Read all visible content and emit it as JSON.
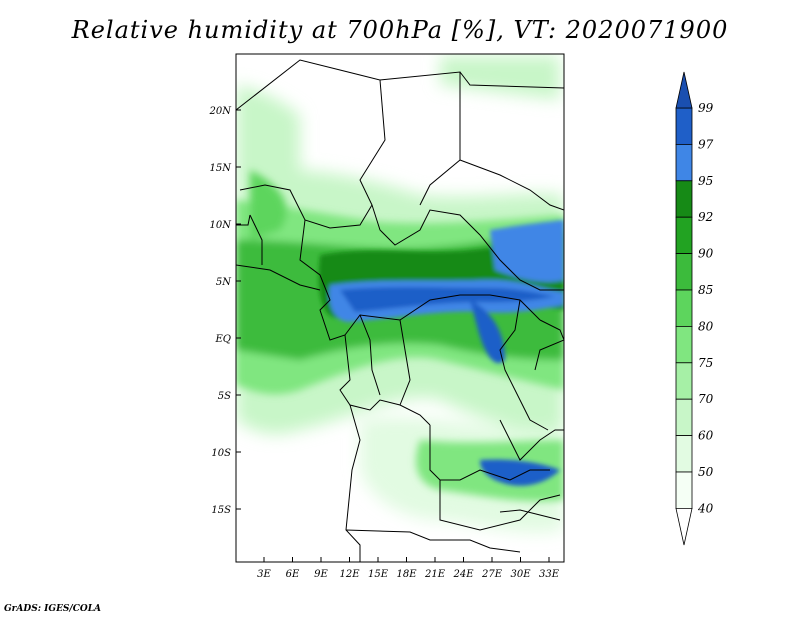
{
  "title": "Relative humidity at 700hPa [%], VT: 2020071900",
  "credit": "GrADS: IGES/COLA",
  "map": {
    "lat_labels": [
      "20N",
      "15N",
      "10N",
      "5N",
      "EQ",
      "5S",
      "10S",
      "15S"
    ],
    "lon_labels": [
      "3E",
      "6E",
      "9E",
      "12E",
      "15E",
      "18E",
      "21E",
      "24E",
      "27E",
      "30E",
      "33E"
    ]
  },
  "colorbar": {
    "levels": [
      "99",
      "97",
      "95",
      "92",
      "90",
      "85",
      "80",
      "75",
      "70",
      "60",
      "50",
      "40"
    ],
    "colors": [
      "#1f5fc8",
      "#3f86e6",
      "#168a16",
      "#22a322",
      "#3cbb3c",
      "#5dd55d",
      "#80e680",
      "#a6f0a6",
      "#c8f6c8",
      "#e2fbe2",
      "#f5fff5"
    ],
    "top_color": "#1a4fb0",
    "bottom_color": "#ffffff"
  }
}
